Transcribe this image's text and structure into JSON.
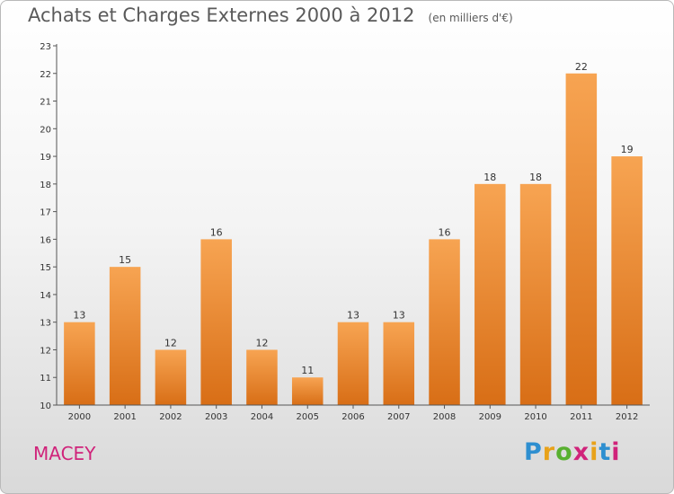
{
  "title": "Achats et Charges Externes 2000 à 2012",
  "unit": "(en milliers d'€)",
  "commune": "MACEY",
  "logo": {
    "letters": [
      "P",
      "r",
      "o",
      "x",
      "i",
      "t",
      "i"
    ],
    "colors": [
      "#2e8fd0",
      "#e8a21a",
      "#58b030",
      "#d0237a",
      "#e8a21a",
      "#2e8fd0",
      "#d0237a"
    ]
  },
  "chart_data": {
    "type": "bar",
    "categories": [
      "2000",
      "2001",
      "2002",
      "2003",
      "2004",
      "2005",
      "2006",
      "2007",
      "2008",
      "2009",
      "2010",
      "2011",
      "2012"
    ],
    "values": [
      13,
      15,
      12,
      16,
      12,
      11,
      13,
      13,
      16,
      18,
      18,
      22,
      19
    ],
    "ylim": [
      10,
      23
    ],
    "yticks": [
      10,
      11,
      12,
      13,
      14,
      15,
      16,
      17,
      18,
      19,
      20,
      21,
      22,
      23
    ],
    "grid": false,
    "bar_color": "#f0892d",
    "xlabel": "",
    "ylabel": ""
  }
}
